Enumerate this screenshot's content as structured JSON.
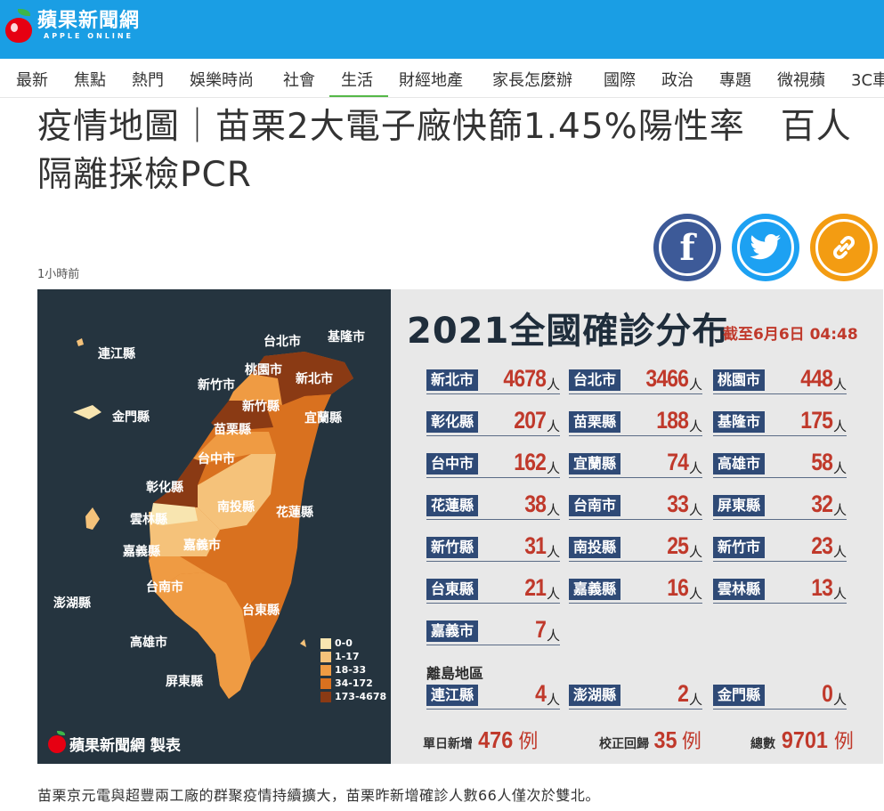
{
  "header": {
    "logo_cn": "蘋果新聞網",
    "logo_en": "APPLE ONLINE"
  },
  "nav": {
    "items": [
      "最新",
      "焦點",
      "熱門",
      "娛樂時尚",
      "社會",
      "生活",
      "財經地產",
      "家長怎麼辦",
      "國際",
      "政治",
      "專題",
      "微視蘋",
      "3C車"
    ],
    "active": "生活"
  },
  "article": {
    "headline_line1": "疫情地圖｜苗栗2大電子廠快篩1.45%陽性率　百人",
    "headline_line2": "隔離採檢PCR",
    "timestamp": "1小時前",
    "body": "苗栗京元電與超豐兩工廠的群聚疫情持續擴大，苗栗昨新增確診人數66人僅次於雙北。"
  },
  "share": {
    "facebook_icon": "facebook-icon",
    "twitter_icon": "twitter-icon",
    "link_icon": "link-icon"
  },
  "infographic": {
    "title": "2021全國確診分布",
    "as_of": "截至6月6日 04:48",
    "map_labels": {
      "lienchiang": "連江縣",
      "kinmen": "金門縣",
      "penghu": "澎湖縣",
      "taipei": "台北市",
      "keelung": "基隆市",
      "taoyuan": "桃園市",
      "newtaipei": "新北市",
      "hsinchu_city": "新竹市",
      "hsinchu_county": "新竹縣",
      "yilan": "宜蘭縣",
      "miaoli": "苗栗縣",
      "taichung": "台中市",
      "changhua": "彰化縣",
      "nantou": "南投縣",
      "hualien": "花蓮縣",
      "yunlin": "雲林縣",
      "chiayi_county": "嘉義縣",
      "chiayi_city": "嘉義市",
      "tainan": "台南市",
      "taitung": "台東縣",
      "kaohsiung": "高雄市",
      "pingtung": "屏東縣"
    },
    "legend": [
      {
        "label": "0-0",
        "color": "#f8e5b0"
      },
      {
        "label": "1-17",
        "color": "#f5c27a"
      },
      {
        "label": "18-33",
        "color": "#ef9b43"
      },
      {
        "label": "34-172",
        "color": "#d9711f"
      },
      {
        "label": "173-4678",
        "color": "#8a3a14"
      }
    ],
    "credit": "蘋果新聞網 製表",
    "unit": "人",
    "cases": [
      {
        "name": "新北市",
        "count": "4678"
      },
      {
        "name": "台北市",
        "count": "3466"
      },
      {
        "name": "桃園市",
        "count": "448"
      },
      {
        "name": "彰化縣",
        "count": "207"
      },
      {
        "name": "苗栗縣",
        "count": "188"
      },
      {
        "name": "基隆市",
        "count": "175"
      },
      {
        "name": "台中市",
        "count": "162"
      },
      {
        "name": "宜蘭縣",
        "count": "74"
      },
      {
        "name": "高雄市",
        "count": "58"
      },
      {
        "name": "花蓮縣",
        "count": "38"
      },
      {
        "name": "台南市",
        "count": "33"
      },
      {
        "name": "屏東縣",
        "count": "32"
      },
      {
        "name": "新竹縣",
        "count": "31"
      },
      {
        "name": "南投縣",
        "count": "25"
      },
      {
        "name": "新竹市",
        "count": "23"
      },
      {
        "name": "台東縣",
        "count": "21"
      },
      {
        "name": "嘉義縣",
        "count": "16"
      },
      {
        "name": "雲林縣",
        "count": "13"
      },
      {
        "name": "嘉義市",
        "count": "7"
      }
    ],
    "islands_label": "離島地區",
    "islands": [
      {
        "name": "連江縣",
        "count": "4"
      },
      {
        "name": "澎湖縣",
        "count": "2"
      },
      {
        "name": "金門縣",
        "count": "0"
      }
    ],
    "daily_new_label": "單日新增",
    "daily_new": "476",
    "corrected_label": "校正回歸",
    "corrected": "35",
    "total_label": "總數",
    "total": "9701",
    "case_unit": "例"
  }
}
